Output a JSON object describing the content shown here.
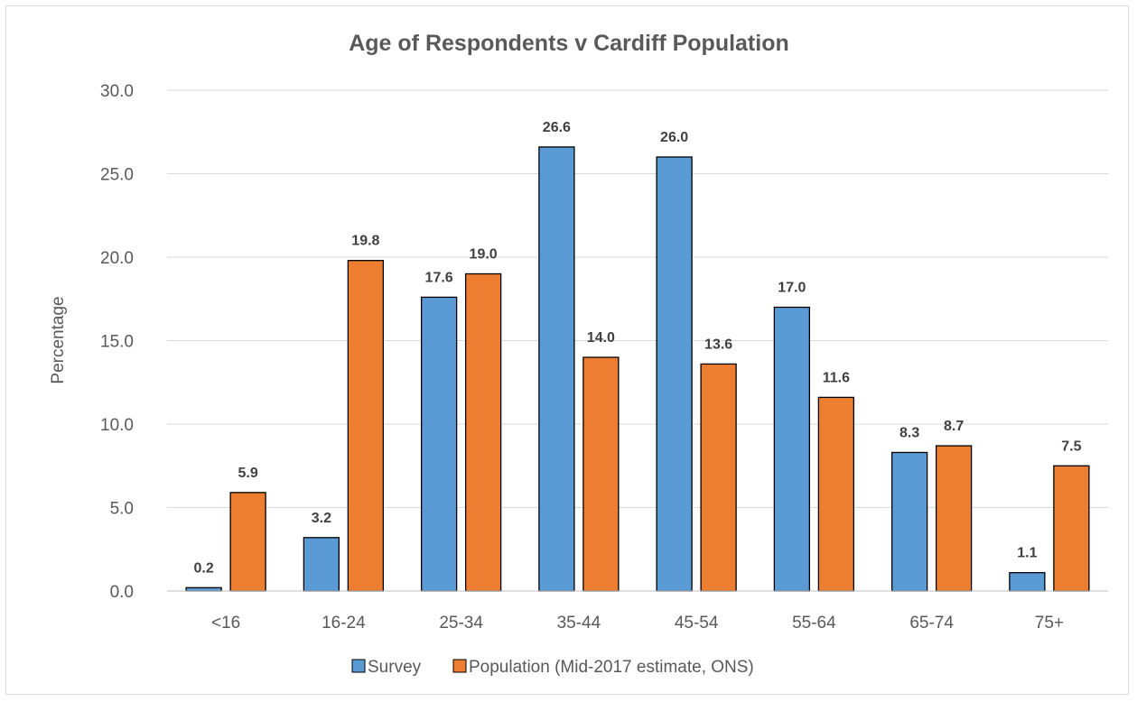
{
  "chart_data": {
    "type": "bar",
    "title": "Age of Respondents v Cardiff Population",
    "xlabel": "",
    "ylabel": "Percentage",
    "ylim": [
      0,
      30
    ],
    "yticks": [
      "0.0",
      "5.0",
      "10.0",
      "15.0",
      "20.0",
      "25.0",
      "30.0"
    ],
    "categories": [
      "<16",
      "16-24",
      "25-34",
      "35-44",
      "45-54",
      "55-64",
      "65-74",
      "75+"
    ],
    "series": [
      {
        "name": "Survey",
        "color": "#5b9bd5",
        "values": [
          0.2,
          3.2,
          17.6,
          26.6,
          26.0,
          17.0,
          8.3,
          1.1
        ],
        "labels": [
          "0.2",
          "3.2",
          "17.6",
          "26.6",
          "26.0",
          "17.0",
          "8.3",
          "1.1"
        ]
      },
      {
        "name": "Population (Mid-2017 estimate, ONS)",
        "color": "#ed7d31",
        "values": [
          5.9,
          19.8,
          19.0,
          14.0,
          13.6,
          11.6,
          8.7,
          7.5
        ],
        "labels": [
          "5.9",
          "19.8",
          "19.0",
          "14.0",
          "13.6",
          "11.6",
          "8.7",
          "7.5"
        ]
      }
    ],
    "grid": true,
    "legend_position": "bottom"
  }
}
